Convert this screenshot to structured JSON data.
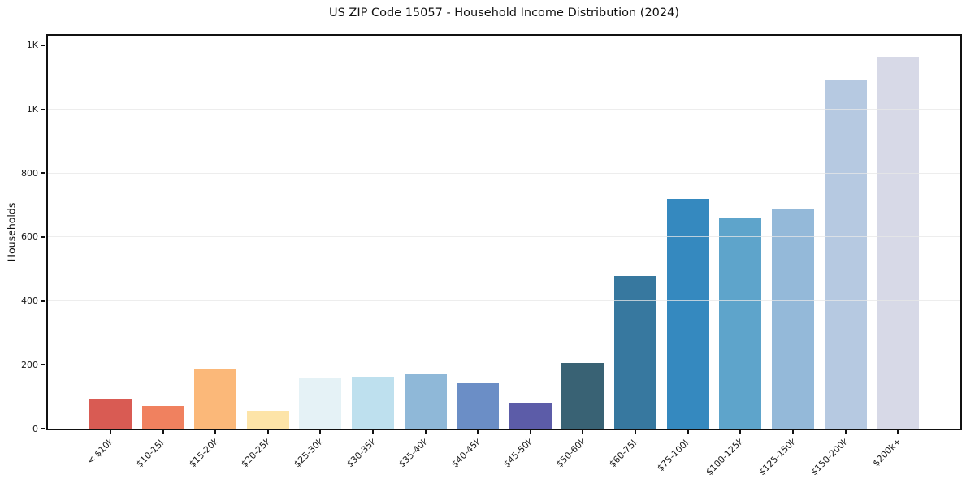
{
  "chart_data": {
    "type": "bar",
    "title": "US ZIP Code 15057 - Household Income Distribution (2024)",
    "xlabel": "",
    "ylabel": "Households",
    "categories": [
      "< $10k",
      "$10-15k",
      "$15-20k",
      "$20-25k",
      "$25-30k",
      "$30-35k",
      "$35-40k",
      "$40-45k",
      "$45-50k",
      "$50-60k",
      "$60-75k",
      "$75-100k",
      "$100-125k",
      "$125-150k",
      "$150-200k",
      "$200k+"
    ],
    "values": [
      95,
      70,
      185,
      57,
      158,
      162,
      170,
      142,
      82,
      207,
      479,
      719,
      658,
      687,
      1091,
      1164
    ],
    "bar_colors": [
      "#d95b53",
      "#f0815f",
      "#fbb879",
      "#fde4a8",
      "#e5f2f6",
      "#bee0ee",
      "#8fb8d8",
      "#6b8ec6",
      "#5c5ca8",
      "#396274",
      "#37789f",
      "#3589bf",
      "#5ea4cb",
      "#94b9d9",
      "#b6c9e1",
      "#d7d9e7"
    ],
    "ylim": [
      0,
      1230
    ],
    "yticks": [
      {
        "value": 0,
        "label": "0"
      },
      {
        "value": 200,
        "label": "200"
      },
      {
        "value": 400,
        "label": "400"
      },
      {
        "value": 600,
        "label": "600"
      },
      {
        "value": 800,
        "label": "800"
      },
      {
        "value": 1000,
        "label": "1K"
      },
      {
        "value": 1200,
        "label": "1K"
      }
    ],
    "grid": "horizontal-only",
    "legend": "none"
  }
}
